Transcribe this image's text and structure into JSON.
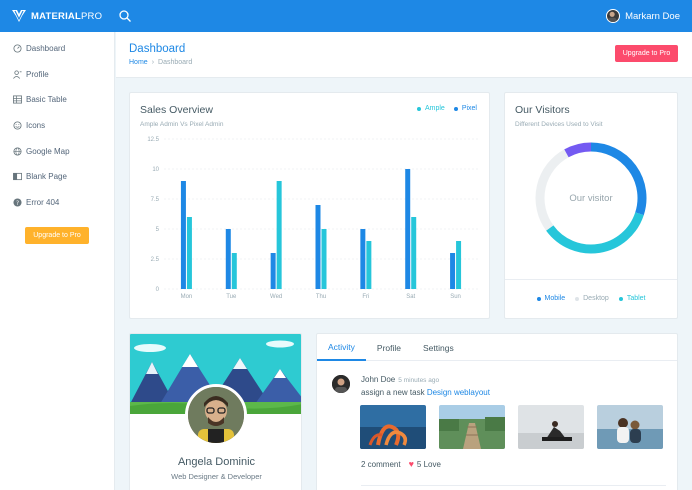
{
  "topbar": {
    "brand_bold": "MATERIAL",
    "brand_light": "PRO",
    "user_name": "Markarn Doe"
  },
  "sidebar": {
    "items": [
      {
        "label": "Dashboard",
        "icon": "gauge-icon"
      },
      {
        "label": "Profile",
        "icon": "user-icon"
      },
      {
        "label": "Basic Table",
        "icon": "table-icon"
      },
      {
        "label": "Icons",
        "icon": "emoticon-icon"
      },
      {
        "label": "Google Map",
        "icon": "globe-icon"
      },
      {
        "label": "Blank Page",
        "icon": "book-icon"
      },
      {
        "label": "Error 404",
        "icon": "help-icon"
      }
    ],
    "upgrade_label": "Upgrade to Pro"
  },
  "page_header": {
    "title": "Dashboard",
    "breadcrumb_home": "Home",
    "breadcrumb_current": "Dashboard",
    "upgrade_label": "Upgrade to Pro"
  },
  "sales": {
    "title": "Sales Overview",
    "subtitle": "Ample Admin Vs Pixel Admin",
    "legend": [
      {
        "label": "Ample",
        "color": "#26c6da"
      },
      {
        "label": "Pixel",
        "color": "#1e88e5"
      }
    ]
  },
  "chart_data": {
    "type": "bar",
    "categories": [
      "Mon",
      "Tue",
      "Wed",
      "Thu",
      "Fri",
      "Sat",
      "Sun"
    ],
    "series": [
      {
        "name": "Pixel",
        "color": "#1e88e5",
        "values": [
          9,
          5,
          3,
          7,
          5,
          10,
          3
        ]
      },
      {
        "name": "Ample",
        "color": "#26c6da",
        "values": [
          6,
          3,
          9,
          5,
          4,
          6,
          4
        ]
      }
    ],
    "yticks": [
      "0",
      "2.5",
      "5",
      "7.5",
      "10",
      "12.5"
    ],
    "ylim": [
      0,
      12.5
    ],
    "grid": true,
    "legend_position": "top-right"
  },
  "visitors": {
    "title": "Our Visitors",
    "subtitle": "Different Devices Used to Visit",
    "center_label": "Our visitor",
    "legend": [
      {
        "label": "Mobile",
        "color": "#1e88e5"
      },
      {
        "label": "Desktop",
        "color": "#eceff1"
      },
      {
        "label": "Tablet",
        "color": "#26c6da"
      }
    ],
    "donut_data": {
      "type": "pie",
      "segments": [
        {
          "name": "Mobile",
          "value": 30,
          "color": "#1e88e5"
        },
        {
          "name": "Tablet",
          "value": 35,
          "color": "#26c6da"
        },
        {
          "name": "Desktop",
          "value": 27,
          "color": "#eceff1"
        },
        {
          "name": "Other",
          "value": 8,
          "color": "#745af2"
        }
      ]
    }
  },
  "profile": {
    "name": "Angela Dominic",
    "role": "Web Designer & Developer"
  },
  "activity": {
    "tabs": [
      "Activity",
      "Profile",
      "Settings"
    ],
    "post": {
      "author": "John Doe",
      "time": "5 minutes ago",
      "text": "assign a new task",
      "link": "Design weblayout",
      "comments": "2 comment",
      "loves": "5 Love"
    }
  }
}
